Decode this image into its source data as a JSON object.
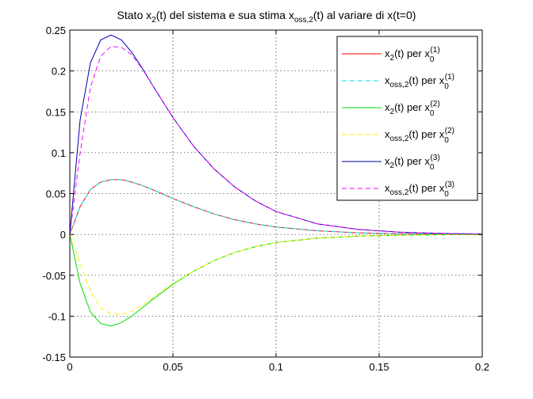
{
  "chart_data": {
    "type": "line",
    "title": "Stato x₂(t) del sistema e sua stima xₒₛₛ,₂(t) al variare di x(t=0)",
    "title_parts": {
      "a": "Stato x",
      "a_sub": "2",
      "b": "(t) del sistema e sua stima x",
      "b_sub": "oss,2",
      "c": "(t) al variare di x(t=0)"
    },
    "xlabel": "",
    "ylabel": "",
    "xlim": [
      0,
      0.2
    ],
    "ylim": [
      -0.15,
      0.25
    ],
    "x_ticks": [
      "0",
      "0.05",
      "0.1",
      "0.15",
      "0.2"
    ],
    "x_tick_values": [
      0,
      0.05,
      0.1,
      0.15,
      0.2
    ],
    "y_ticks": [
      "-0.15",
      "-0.1",
      "-0.05",
      "0",
      "0.05",
      "0.1",
      "0.15",
      "0.2",
      "0.25"
    ],
    "y_tick_values": [
      -0.15,
      -0.1,
      -0.05,
      0,
      0.05,
      0.1,
      0.15,
      0.2,
      0.25
    ],
    "grid": true,
    "legend_position": "top-right",
    "x": [
      0,
      0.005,
      0.01,
      0.015,
      0.02,
      0.025,
      0.03,
      0.035,
      0.04,
      0.05,
      0.06,
      0.07,
      0.08,
      0.09,
      0.1,
      0.12,
      0.14,
      0.16,
      0.18,
      0.2
    ],
    "series": [
      {
        "legend_main": "x",
        "legend_sub": "2",
        "legend_mid": "(t) per x",
        "legend_sub2": "0",
        "legend_sup": "(1)",
        "color": "#ff0000",
        "dash": false,
        "values": [
          0,
          0.034,
          0.055,
          0.064,
          0.067,
          0.067,
          0.064,
          0.06,
          0.055,
          0.044,
          0.034,
          0.025,
          0.018,
          0.013,
          0.009,
          0.0045,
          0.002,
          0.0009,
          0.0004,
          0.0001
        ]
      },
      {
        "legend_main": "x",
        "legend_sub": "oss,2",
        "legend_mid": "(t) per x",
        "legend_sub2": "0",
        "legend_sup": "(1)",
        "color": "#00e5ee",
        "dash": true,
        "values": [
          0,
          0.034,
          0.055,
          0.064,
          0.067,
          0.067,
          0.064,
          0.06,
          0.055,
          0.044,
          0.034,
          0.025,
          0.018,
          0.013,
          0.009,
          0.0045,
          0.002,
          0.0009,
          0.0004,
          0.0001
        ]
      },
      {
        "legend_main": "x",
        "legend_sub": "2",
        "legend_mid": "(t) per x",
        "legend_sub2": "0",
        "legend_sup": "(2)",
        "color": "#00dd00",
        "dash": false,
        "values": [
          0,
          -0.06,
          -0.095,
          -0.109,
          -0.112,
          -0.108,
          -0.1,
          -0.09,
          -0.08,
          -0.061,
          -0.045,
          -0.032,
          -0.022,
          -0.015,
          -0.01,
          -0.0045,
          -0.002,
          -0.0009,
          -0.0004,
          -0.0001
        ]
      },
      {
        "legend_main": "x",
        "legend_sub": "oss,2",
        "legend_mid": "(t) per x",
        "legend_sub2": "0",
        "legend_sup": "(2)",
        "color": "#ffee00",
        "dash": true,
        "values": [
          0,
          -0.035,
          -0.07,
          -0.09,
          -0.097,
          -0.098,
          -0.094,
          -0.087,
          -0.078,
          -0.06,
          -0.045,
          -0.032,
          -0.022,
          -0.015,
          -0.01,
          -0.0045,
          -0.002,
          -0.0009,
          -0.0004,
          -0.0001
        ]
      },
      {
        "legend_main": "x",
        "legend_sub": "2",
        "legend_mid": "(t) per x",
        "legend_sub2": "0",
        "legend_sup": "(3)",
        "color": "#0000aa",
        "dash": false,
        "values": [
          0,
          0.14,
          0.21,
          0.238,
          0.244,
          0.238,
          0.223,
          0.204,
          0.183,
          0.143,
          0.108,
          0.08,
          0.058,
          0.041,
          0.028,
          0.013,
          0.006,
          0.0027,
          0.0012,
          0.0005
        ]
      },
      {
        "legend_main": "x",
        "legend_sub": "oss,2",
        "legend_mid": "(t) per x",
        "legend_sub2": "0",
        "legend_sup": "(3)",
        "color": "#ff00ff",
        "dash": true,
        "values": [
          0,
          0.1,
          0.18,
          0.218,
          0.23,
          0.229,
          0.22,
          0.203,
          0.183,
          0.143,
          0.108,
          0.08,
          0.058,
          0.041,
          0.028,
          0.013,
          0.006,
          0.0027,
          0.0012,
          0.0005
        ]
      }
    ]
  }
}
